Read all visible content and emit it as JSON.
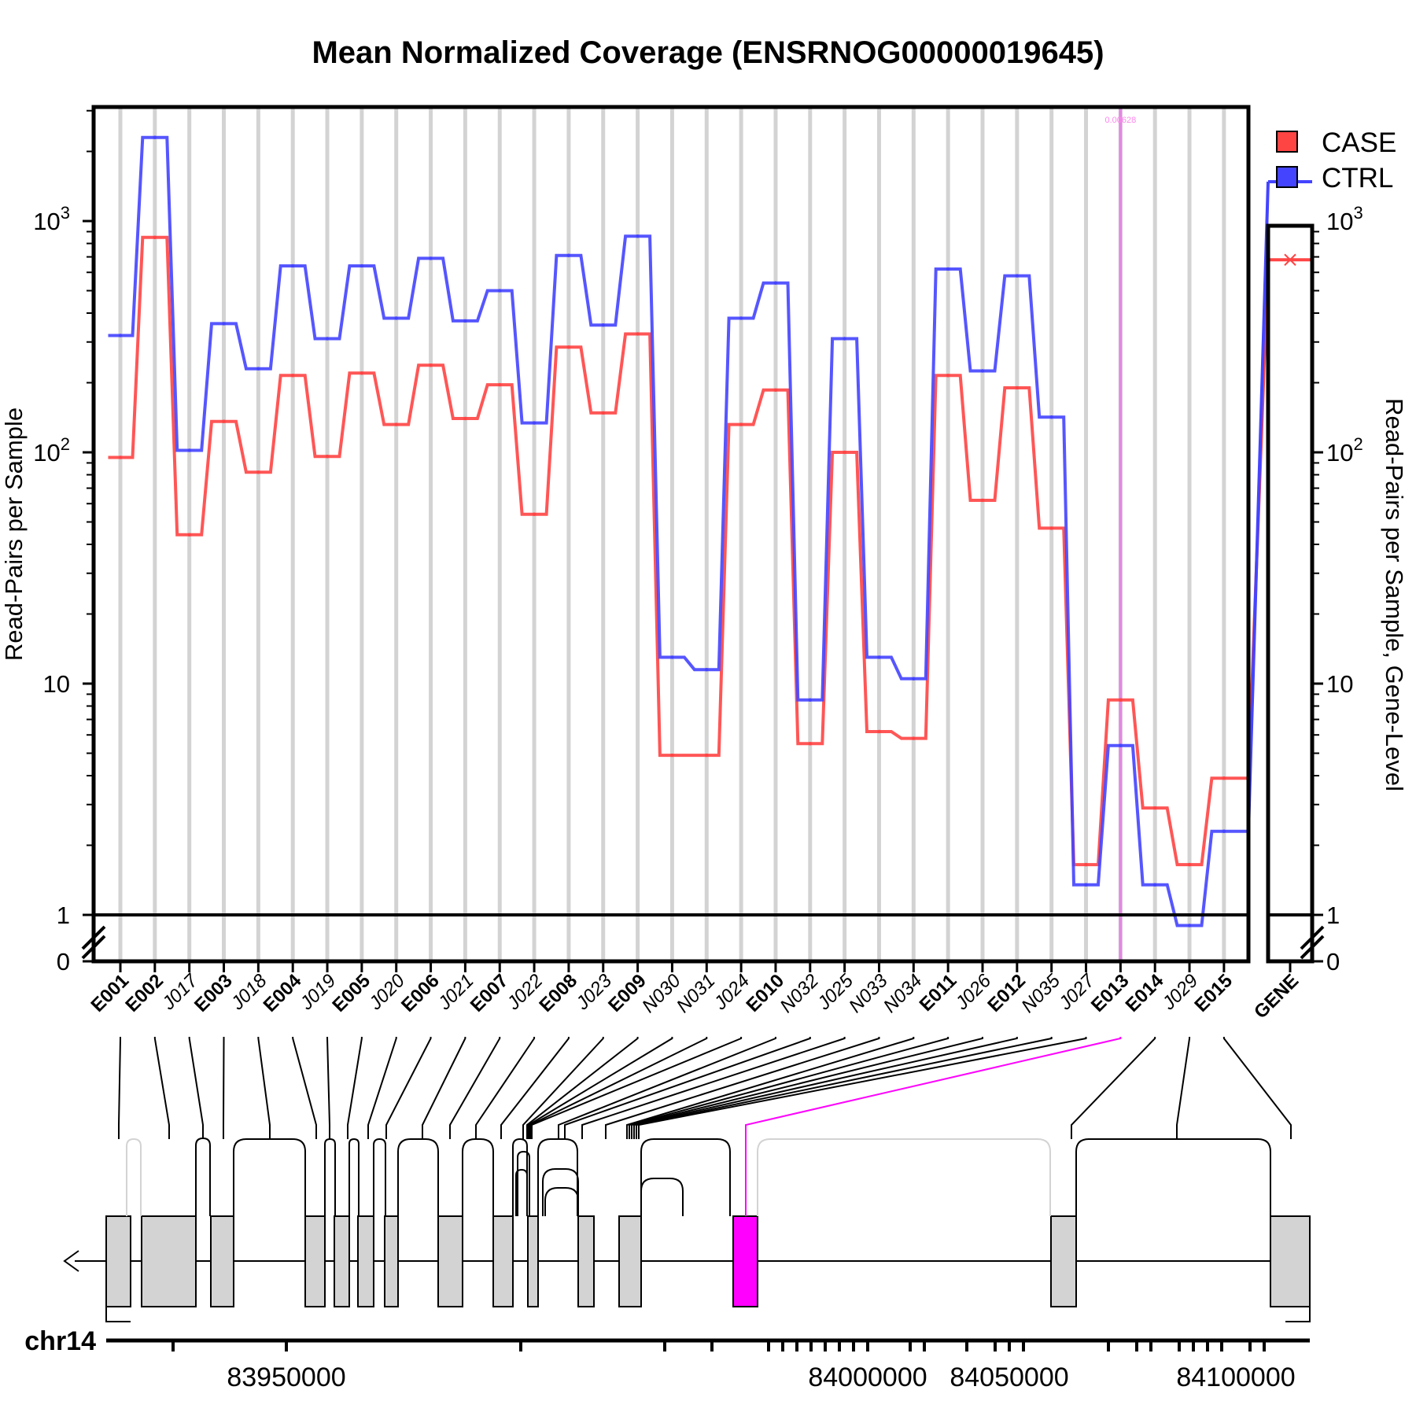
{
  "chart_data": {
    "type": "line",
    "title": "Mean Normalized Coverage (ENSRNOG00000019645)",
    "ylabel": "Read-Pairs per Sample",
    "ylabel_right": "Read-Pairs per Sample, Gene-Level",
    "yscale": "log",
    "ylim": [
      0,
      3000
    ],
    "yticks": [
      "0",
      "1",
      "10",
      "10^2",
      "10^3"
    ],
    "yticks_right": [
      "0",
      "1",
      "10",
      "10^2",
      "10^3"
    ],
    "grid": true,
    "legend_position": "top-right",
    "categories": [
      "E001",
      "E002",
      "J017",
      "E003",
      "J018",
      "E004",
      "J019",
      "E005",
      "J020",
      "E006",
      "J021",
      "E007",
      "J022",
      "E008",
      "J023",
      "E009",
      "N030",
      "N031",
      "J024",
      "E010",
      "N032",
      "J025",
      "N033",
      "N034",
      "E011",
      "J026",
      "E012",
      "N035",
      "J027",
      "E013",
      "E014",
      "J029",
      "E015"
    ],
    "category_style": [
      "bold",
      "bold",
      "italic",
      "bold",
      "italic",
      "bold",
      "italic",
      "bold",
      "italic",
      "bold",
      "italic",
      "bold",
      "italic",
      "bold",
      "italic",
      "bold",
      "italic",
      "italic",
      "italic",
      "bold",
      "italic",
      "italic",
      "italic",
      "italic",
      "bold",
      "italic",
      "bold",
      "italic",
      "italic",
      "bold",
      "bold",
      "italic",
      "bold"
    ],
    "series": [
      {
        "name": "CASE",
        "color": "#ff4444",
        "values": [
          95,
          850,
          44,
          136,
          82,
          215,
          96,
          220,
          132,
          238,
          140,
          196,
          54,
          285,
          148,
          325,
          4.9,
          4.9,
          132,
          186,
          5.5,
          100,
          6.2,
          5.8,
          215,
          62,
          190,
          47,
          1.65,
          8.5,
          2.9,
          1.65,
          3.9
        ],
        "gene_level": 680
      },
      {
        "name": "CTRL",
        "color": "#4444ff",
        "values": [
          320,
          2300,
          102,
          360,
          230,
          640,
          310,
          640,
          380,
          690,
          370,
          500,
          134,
          710,
          355,
          860,
          13,
          11.5,
          380,
          540,
          8.5,
          310,
          13,
          10.5,
          620,
          225,
          580,
          142,
          1.35,
          5.4,
          1.35,
          0.9,
          2.3
        ],
        "gene_level": 1480
      }
    ],
    "highlight": {
      "category": "E013",
      "label": "0.00628",
      "color": "#ff00ff"
    },
    "gene_label": "GENE",
    "chromosome": "chr14",
    "genomic_ticks": [
      "83950000",
      "84000000",
      "84050000",
      "84100000"
    ]
  }
}
